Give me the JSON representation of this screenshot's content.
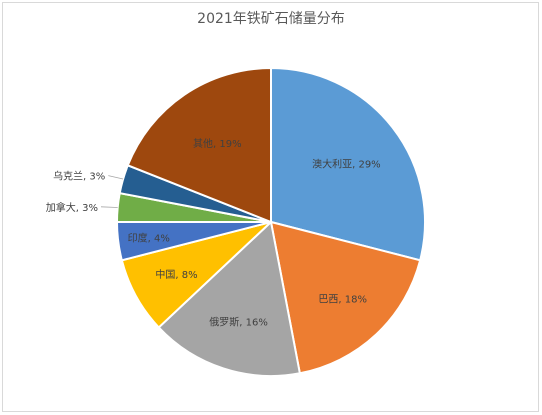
{
  "chart_data": {
    "type": "pie",
    "title": "2021年铁矿石储量分布",
    "categories": [
      "澳大利亚",
      "巴西",
      "俄罗斯",
      "中国",
      "印度",
      "加拿大",
      "乌克兰",
      "其他"
    ],
    "values": [
      29,
      18,
      16,
      8,
      4,
      3,
      3,
      19
    ],
    "data_labels": [
      "澳大利亚, 29%",
      "巴西, 18%",
      "俄罗斯, 16%",
      "中国, 8%",
      "印度, 4%",
      "加拿大, 3%",
      "乌克兰, 3%",
      "其他, 19%"
    ],
    "colors": [
      "#5B9BD5",
      "#ED7D31",
      "#A5A5A5",
      "#FFC000",
      "#4472C4",
      "#70AD47",
      "#255E91",
      "#9E480E"
    ],
    "legend": "none",
    "start_angle": "12 o'clock, clockwise"
  }
}
